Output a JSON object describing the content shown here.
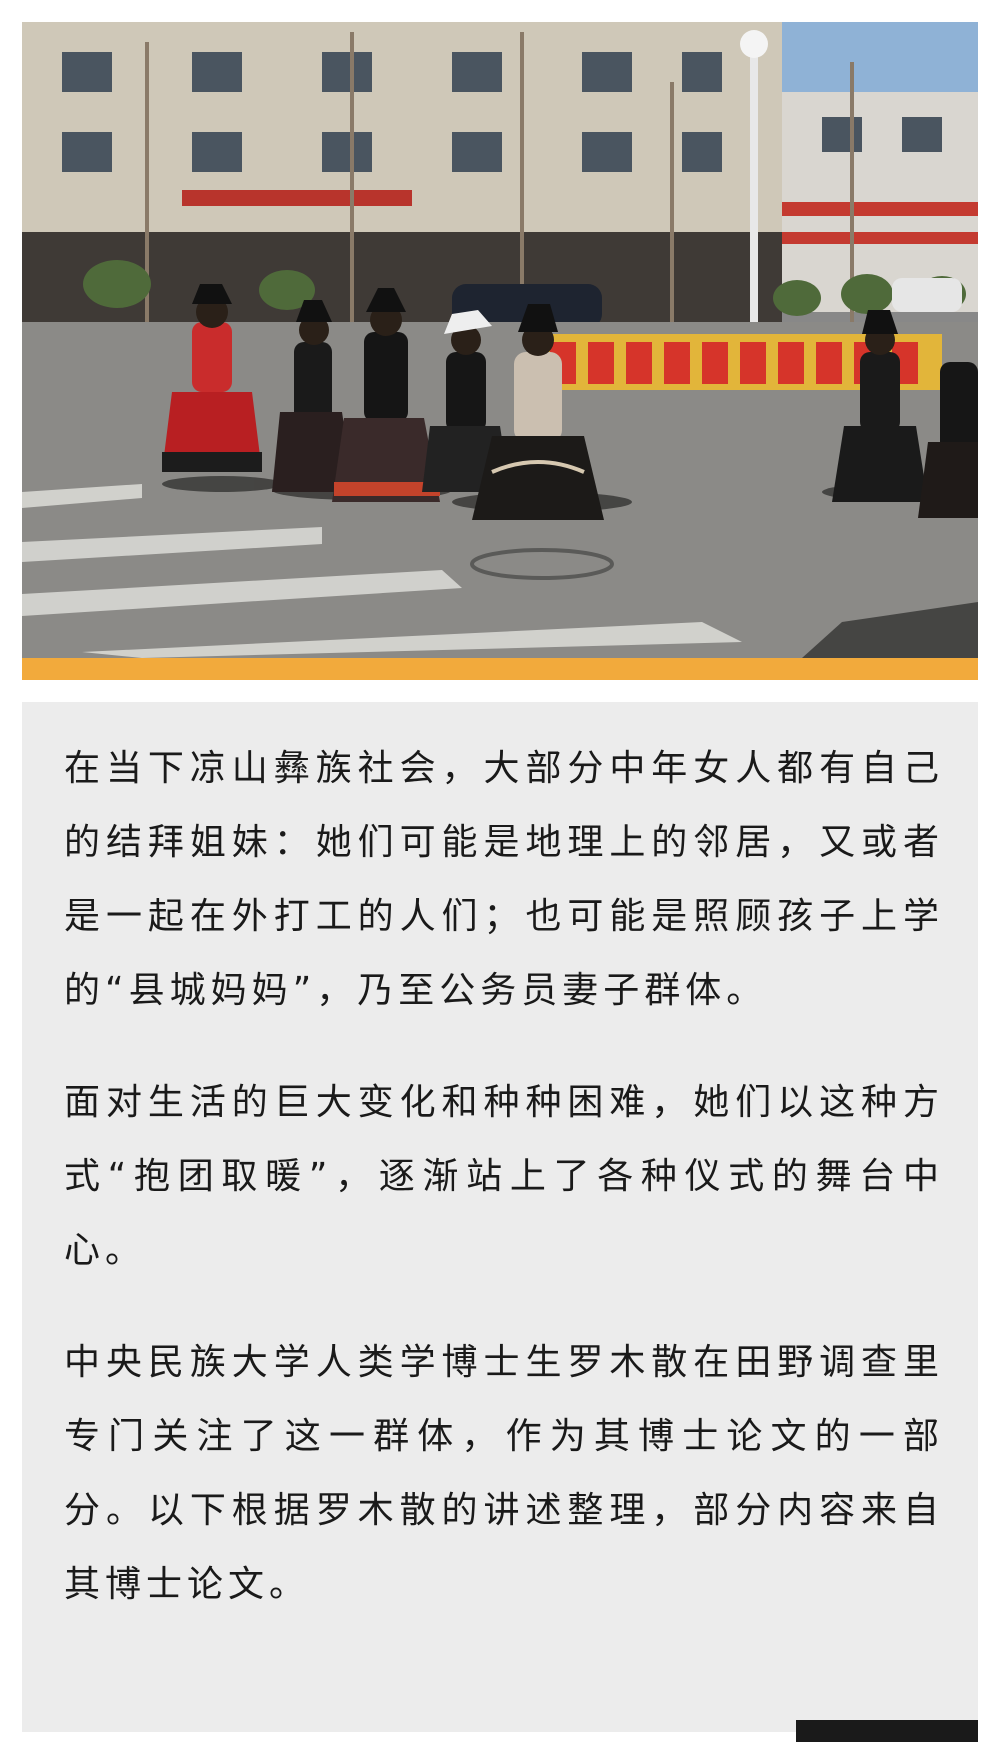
{
  "article": {
    "paragraphs": [
      "在当下凉山彝族社会，大部分中年女人都有自己的结拜姐妹：她们可能是地理上的邻居，又或者是一起在外打工的人们；也可能是照顾孩子上学的“县城妈妈”，乃至公务员妻子群体。",
      "面对生活的巨大变化和种种困难，她们以这种方式“抱团取暖”，逐渐站上了各种仪式的舞台中心。",
      "中央民族大学人类学博士生罗木散在田野调查里专门关注了这一群体，作为其博士论文的一部分。以下根据罗木散的讲述整理，部分内容来自其博士论文。"
    ]
  },
  "colors": {
    "accent": "#f2aa3c",
    "card_background": "#ececec",
    "corner_bar": "#1a1a1a",
    "body_text": "#1a1a1a"
  }
}
